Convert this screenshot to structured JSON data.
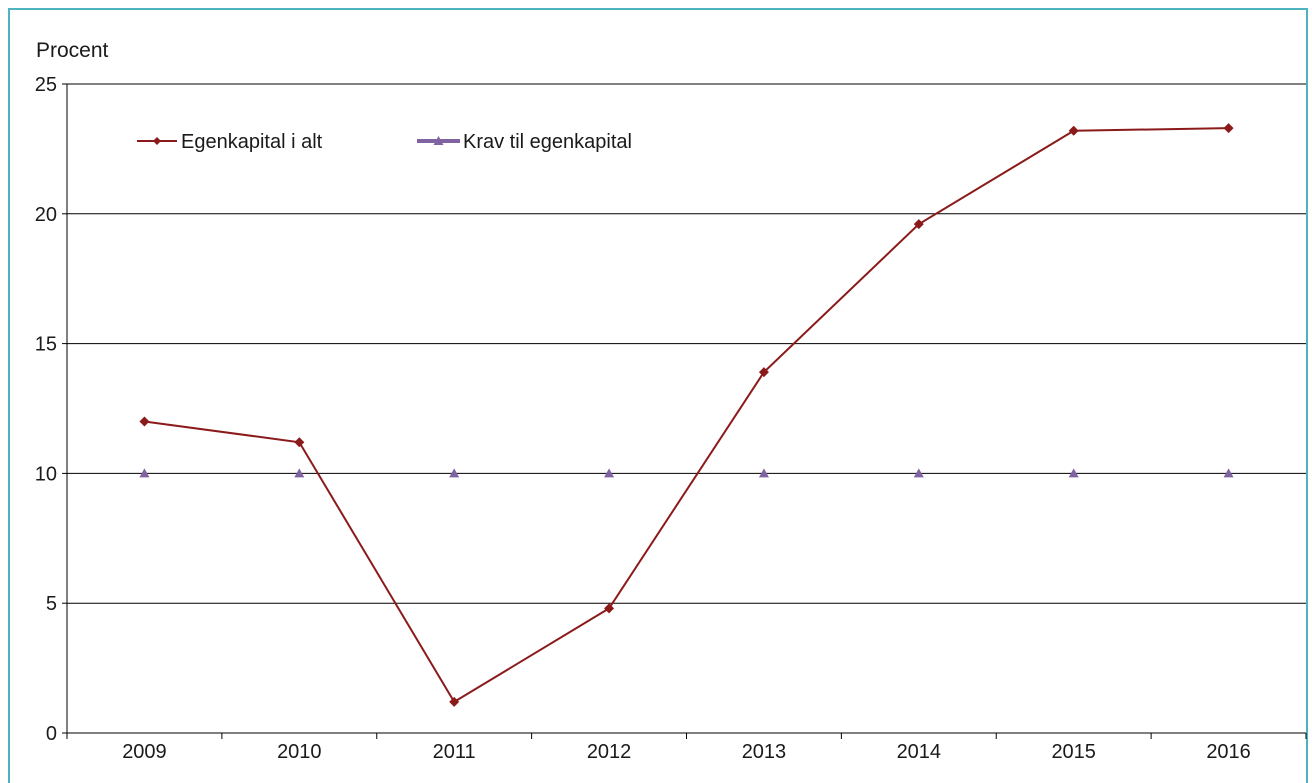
{
  "chart_data": {
    "type": "line",
    "ylabel": "Procent",
    "xlabel": "",
    "categories": [
      "2009",
      "2010",
      "2011",
      "2012",
      "2013",
      "2014",
      "2015",
      "2016"
    ],
    "ylim": [
      0,
      25
    ],
    "yticks": [
      0,
      5,
      10,
      15,
      20,
      25
    ],
    "grid": true,
    "legend_position": "top-left",
    "series": [
      {
        "name": "Egenkapital i alt",
        "values": [
          12.0,
          11.2,
          1.2,
          4.8,
          13.9,
          19.6,
          23.2,
          23.3
        ],
        "color": "#8b1a1a",
        "marker": "diamond"
      },
      {
        "name": "Krav til egenkapital",
        "values": [
          10,
          10,
          10,
          10,
          10,
          10,
          10,
          10
        ],
        "color": "#8064a2",
        "marker": "triangle"
      }
    ]
  }
}
